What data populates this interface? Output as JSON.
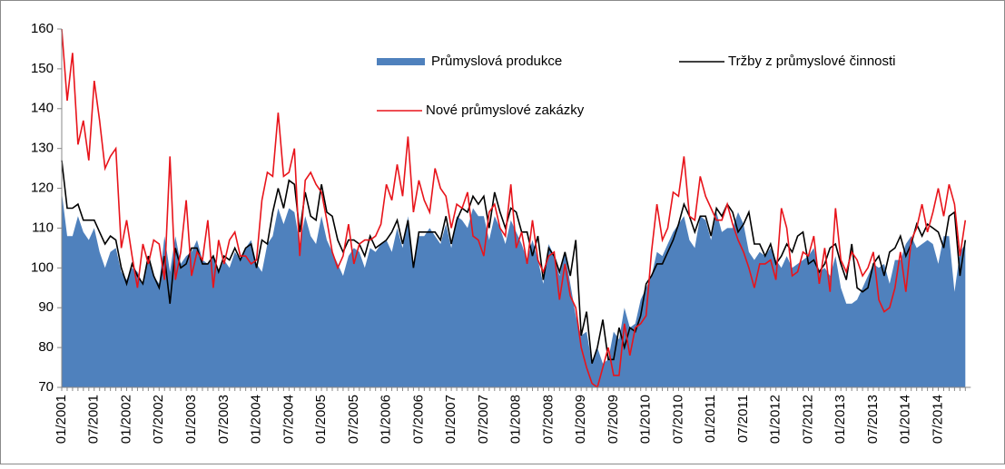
{
  "chart_data": {
    "type": "area_line",
    "categories": [
      "01/2001",
      null,
      null,
      null,
      null,
      null,
      "07/2001",
      null,
      null,
      null,
      null,
      null,
      "01/2002",
      null,
      null,
      null,
      null,
      null,
      "07/2002",
      null,
      null,
      null,
      null,
      null,
      "01/2003",
      null,
      null,
      null,
      null,
      null,
      "07/2003",
      null,
      null,
      null,
      null,
      null,
      "01/2004",
      null,
      null,
      null,
      null,
      null,
      "07/2004",
      null,
      null,
      null,
      null,
      null,
      "01/2005",
      null,
      null,
      null,
      null,
      null,
      "07/2005",
      null,
      null,
      null,
      null,
      null,
      "01/2006",
      null,
      null,
      null,
      null,
      null,
      "07/2006",
      null,
      null,
      null,
      null,
      null,
      "01/2007",
      null,
      null,
      null,
      null,
      null,
      "07/2007",
      null,
      null,
      null,
      null,
      null,
      "01/2008",
      null,
      null,
      null,
      null,
      null,
      "07/2008",
      null,
      null,
      null,
      null,
      null,
      "01/2009",
      null,
      null,
      null,
      null,
      null,
      "07/2009",
      null,
      null,
      null,
      null,
      null,
      "01/2010",
      null,
      null,
      null,
      null,
      null,
      "07/2010",
      null,
      null,
      null,
      null,
      null,
      "01/2011",
      null,
      null,
      null,
      null,
      null,
      "07/2011",
      null,
      null,
      null,
      null,
      null,
      "01/2012",
      null,
      null,
      null,
      null,
      null,
      "07/2012",
      null,
      null,
      null,
      null,
      null,
      "01/2013",
      null,
      null,
      null,
      null,
      null,
      "07/2013",
      null,
      null,
      null,
      null,
      null,
      "01/2014",
      null,
      null,
      null,
      null,
      null,
      "07/2014",
      null,
      null,
      null,
      null,
      null
    ],
    "series": [
      {
        "name": "Průmyslová produkce",
        "kind": "area",
        "color": "#4f81bd",
        "values": [
          119,
          108,
          108,
          113,
          109,
          107,
          110,
          104,
          100,
          104,
          105,
          99,
          97,
          100,
          99,
          96,
          103,
          98,
          96,
          108,
          99,
          108,
          101,
          103,
          104,
          107,
          102,
          101,
          103,
          99,
          102,
          100,
          104,
          102,
          105,
          107,
          101,
          99,
          106,
          108,
          115,
          111,
          115,
          114,
          106,
          113,
          108,
          106,
          113,
          107,
          104,
          101,
          98,
          103,
          105,
          104,
          100,
          105,
          104,
          106,
          107,
          104,
          110,
          105,
          113,
          101,
          108,
          108,
          110,
          108,
          106,
          111,
          105,
          113,
          112,
          110,
          115,
          113,
          113,
          107,
          113,
          110,
          106,
          112,
          109,
          106,
          102,
          107,
          102,
          96,
          106,
          103,
          98,
          104,
          96,
          88,
          83,
          84,
          76,
          80,
          76,
          77,
          84,
          82,
          90,
          85,
          86,
          92,
          95,
          98,
          104,
          103,
          106,
          109,
          111,
          113,
          107,
          105,
          113,
          112,
          107,
          114,
          109,
          110,
          110,
          114,
          111,
          104,
          102,
          104,
          103,
          105,
          102,
          100,
          103,
          100,
          101,
          102,
          103,
          105,
          99,
          100,
          98,
          103,
          95,
          91,
          91,
          92,
          95,
          98,
          101,
          100,
          101,
          96,
          102,
          102,
          106,
          108,
          105,
          106,
          107,
          106,
          101,
          108,
          108,
          94,
          104,
          106
        ]
      },
      {
        "name": "Tržby  z průmyslové činnosti",
        "kind": "line",
        "color": "#000000",
        "values": [
          127,
          115,
          115,
          116,
          112,
          112,
          112,
          109,
          106,
          108,
          107,
          100,
          96,
          101,
          98,
          96,
          103,
          98,
          95,
          103,
          91,
          105,
          100,
          101,
          105,
          105,
          101,
          101,
          103,
          99,
          103,
          102,
          105,
          102,
          105,
          106,
          100,
          107,
          106,
          114,
          120,
          115,
          122,
          121,
          109,
          119,
          113,
          112,
          121,
          114,
          113,
          107,
          104,
          107,
          107,
          106,
          103,
          108,
          105,
          106,
          107,
          109,
          112,
          106,
          112,
          100,
          109,
          109,
          109,
          109,
          107,
          113,
          106,
          112,
          115,
          114,
          118,
          116,
          118,
          110,
          119,
          114,
          110,
          115,
          114,
          109,
          109,
          103,
          108,
          97,
          105,
          103,
          99,
          104,
          98,
          107,
          83,
          89,
          76,
          80,
          87,
          77,
          77,
          85,
          80,
          85,
          84,
          88,
          96,
          98,
          101,
          101,
          104,
          107,
          111,
          116,
          113,
          109,
          113,
          113,
          108,
          115,
          113,
          116,
          114,
          109,
          111,
          114,
          106,
          106,
          103,
          106,
          101,
          103,
          106,
          104,
          108,
          109,
          101,
          102,
          99,
          101,
          105,
          106,
          101,
          97,
          106,
          95,
          94,
          95,
          101,
          103,
          98,
          104,
          105,
          108,
          103,
          106,
          111,
          108,
          111,
          110,
          109,
          105,
          113,
          114,
          98,
          107
        ]
      },
      {
        "name": "Nové průmyslové zakázky",
        "kind": "line",
        "color": "#e8141b",
        "values": [
          160,
          142,
          154,
          131,
          137,
          127,
          147,
          137,
          125,
          128,
          130,
          105,
          112,
          103,
          95,
          106,
          101,
          107,
          106,
          97,
          128,
          97,
          104,
          117,
          98,
          104,
          102,
          112,
          95,
          107,
          101,
          107,
          109,
          103,
          103,
          101,
          102,
          117,
          124,
          123,
          139,
          123,
          124,
          130,
          103,
          122,
          124,
          121,
          119,
          112,
          104,
          100,
          103,
          111,
          101,
          106,
          107,
          107,
          108,
          111,
          121,
          117,
          126,
          118,
          133,
          114,
          122,
          117,
          114,
          125,
          120,
          118,
          110,
          116,
          115,
          119,
          108,
          107,
          103,
          114,
          116,
          110,
          108,
          121,
          105,
          109,
          101,
          112,
          102,
          99,
          103,
          104,
          92,
          101,
          93,
          90,
          80,
          75,
          71,
          70,
          75,
          80,
          73,
          73,
          86,
          78,
          85,
          86,
          88,
          104,
          116,
          107,
          110,
          119,
          118,
          128,
          113,
          112,
          123,
          118,
          115,
          112,
          112,
          116,
          111,
          107,
          104,
          100,
          95,
          101,
          101,
          102,
          97,
          115,
          110,
          98,
          99,
          104,
          103,
          108,
          96,
          105,
          94,
          115,
          102,
          99,
          104,
          102,
          98,
          100,
          104,
          92,
          89,
          90,
          95,
          104,
          94,
          107,
          110,
          116,
          109,
          114,
          120,
          113,
          121,
          116,
          103,
          112
        ]
      }
    ],
    "ylim": [
      70,
      160
    ],
    "yticks": [
      70,
      80,
      90,
      100,
      110,
      120,
      130,
      140,
      150,
      160
    ],
    "grid": false
  }
}
